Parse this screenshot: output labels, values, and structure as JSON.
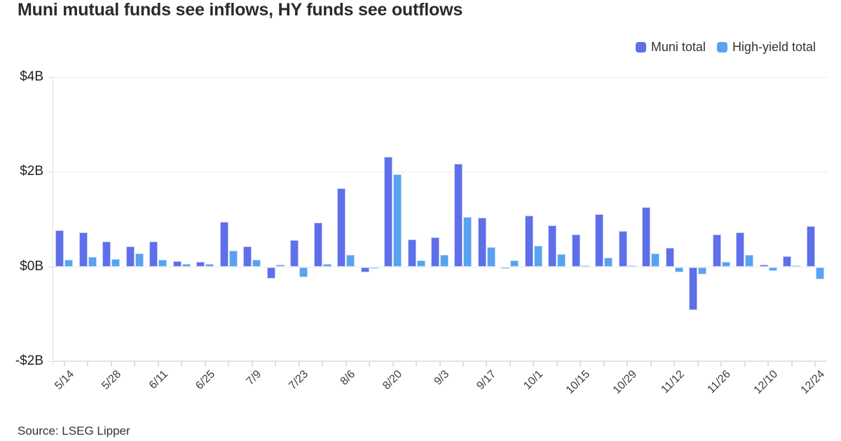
{
  "page": {
    "title": "Muni mutual funds see inflows, HY funds see outflows",
    "source": "Source: LSEG Lipper"
  },
  "colors": {
    "muni": "#5e6fe9",
    "muni_halo": "#c3cbf8",
    "high_yield": "#58a2f0",
    "high_yield_halo": "#bedcfa",
    "gridline": "#ececec",
    "axis": "#e0e0e0"
  },
  "legend": [
    {
      "label": "Muni total",
      "color": "#5e6fe9"
    },
    {
      "label": "High-yield total",
      "color": "#58a2f0"
    }
  ],
  "chart_data": {
    "type": "bar",
    "title": "Muni mutual funds see inflows, HY funds see outflows",
    "xlabel": "",
    "ylabel": "",
    "unit": "$B",
    "ylim": [
      -2,
      4
    ],
    "grid": "horizontal",
    "legend_position": "top-right",
    "categories": [
      "5/14",
      "5/21",
      "5/28",
      "6/4",
      "6/11",
      "6/18",
      "6/25",
      "7/2",
      "7/9",
      "7/16",
      "7/23",
      "7/30",
      "8/6",
      "8/13",
      "8/20",
      "8/27",
      "9/3",
      "9/10",
      "9/17",
      "9/24",
      "10/1",
      "10/8",
      "10/15",
      "10/22",
      "10/29",
      "11/5",
      "11/12",
      "11/19",
      "11/26",
      "12/3",
      "12/10",
      "12/17",
      "12/24"
    ],
    "x_tick_labels": [
      "5/14",
      "5/28",
      "6/11",
      "6/25",
      "7/9",
      "7/23",
      "8/6",
      "8/20",
      "9/3",
      "9/17",
      "10/1",
      "10/15",
      "10/29",
      "11/12",
      "11/26",
      "12/10",
      "12/24"
    ],
    "yticks": [
      {
        "value": 4,
        "label": "$4B"
      },
      {
        "value": 2,
        "label": "$2B"
      },
      {
        "value": 0,
        "label": "$0B"
      },
      {
        "value": -2,
        "label": "-$2B"
      }
    ],
    "series": [
      {
        "name": "Muni total",
        "color": "#5e6fe9",
        "halo": "#c3cbf8",
        "values": [
          0.76,
          0.72,
          0.53,
          0.43,
          0.53,
          0.11,
          0.1,
          0.94,
          0.43,
          -0.24,
          0.56,
          0.93,
          1.65,
          -0.11,
          2.32,
          0.57,
          0.62,
          2.17,
          1.03,
          -0.04,
          1.07,
          0.87,
          0.67,
          1.1,
          0.75,
          1.25,
          0.4,
          -0.91,
          0.68,
          0.72,
          0.04,
          0.22,
          0.85
        ]
      },
      {
        "name": "High-yield total",
        "color": "#58a2f0",
        "halo": "#bedcfa",
        "values": [
          0.15,
          0.2,
          0.16,
          0.28,
          0.15,
          0.06,
          0.05,
          0.34,
          0.14,
          0.04,
          -0.21,
          0.05,
          0.24,
          -0.03,
          1.95,
          0.13,
          0.24,
          1.05,
          0.41,
          0.13,
          0.44,
          0.26,
          0.02,
          0.18,
          0.01,
          0.27,
          -0.11,
          -0.16,
          0.1,
          0.25,
          -0.08,
          0.01,
          -0.26
        ]
      }
    ]
  }
}
